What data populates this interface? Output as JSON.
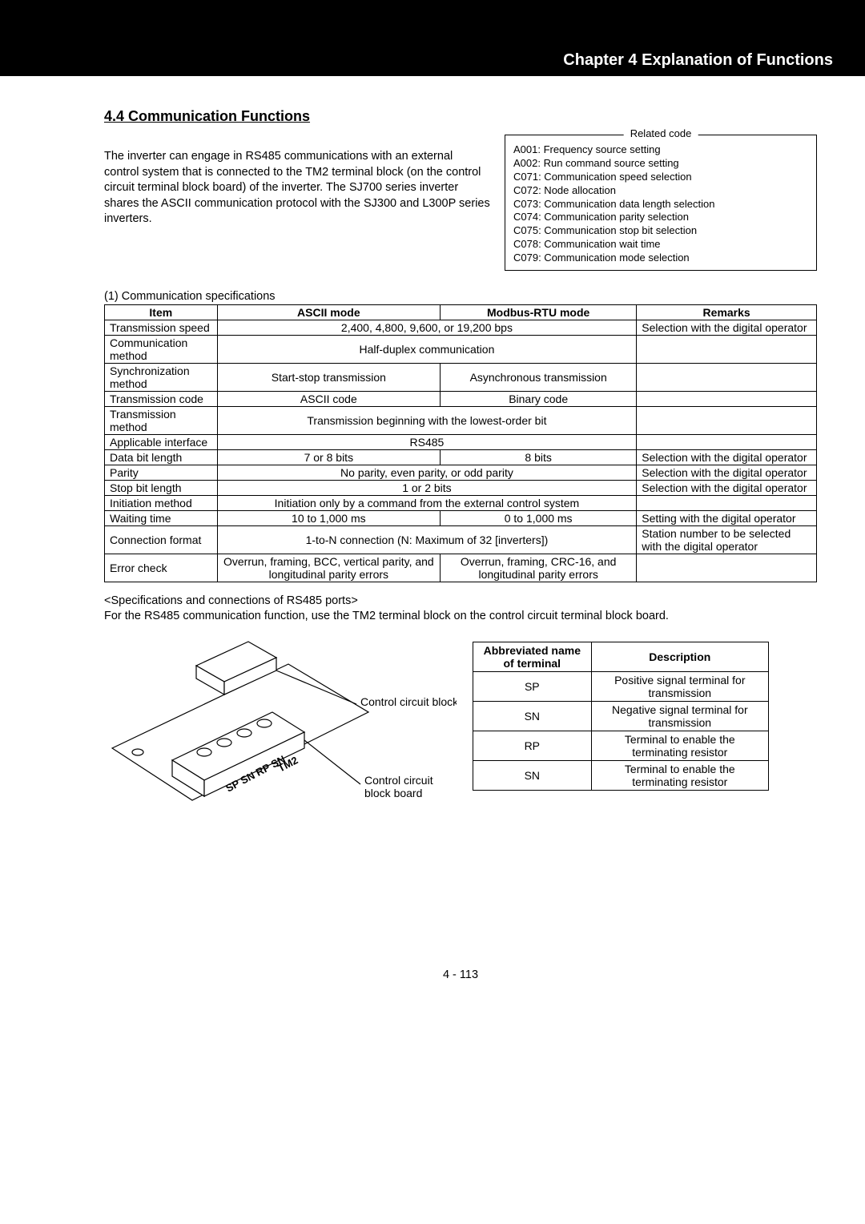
{
  "chapter_title": "Chapter 4 Explanation of Functions",
  "section_title": "4.4 Communication Functions",
  "intro_text": "The inverter can engage in RS485 communications with an external control system that is connected to the TM2 terminal block (on the control circuit terminal block board) of the inverter. The SJ700 series inverter shares the ASCII communication protocol with the SJ300 and L300P series inverters.",
  "related_code": {
    "title": "Related code",
    "items": [
      "A001: Frequency source setting",
      "A002: Run command source setting",
      "C071: Communication speed selection",
      "C072: Node allocation",
      "C073: Communication data length selection",
      "C074: Communication parity selection",
      "C075: Communication stop bit selection",
      "C078: Communication wait time",
      "C079: Communication mode selection"
    ]
  },
  "spec_caption": "(1) Communication specifications",
  "spec_headers": {
    "item": "Item",
    "ascii": "ASCII mode",
    "modbus": "Modbus-RTU mode",
    "remarks": "Remarks"
  },
  "spec_rows": [
    {
      "item": "Transmission speed",
      "span": "2,400, 4,800, 9,600, or 19,200 bps",
      "remarks": "Selection with the digital operator"
    },
    {
      "item": "Communication method",
      "span": "Half-duplex communication",
      "remarks": ""
    },
    {
      "item": "Synchronization method",
      "ascii": "Start-stop transmission",
      "modbus": "Asynchronous transmission",
      "remarks": ""
    },
    {
      "item": "Transmission code",
      "ascii": "ASCII code",
      "modbus": "Binary code",
      "remarks": ""
    },
    {
      "item": "Transmission method",
      "span": "Transmission beginning with the lowest-order bit",
      "remarks": ""
    },
    {
      "item": "Applicable interface",
      "span": "RS485",
      "remarks": ""
    },
    {
      "item": "Data bit length",
      "ascii": "7 or 8 bits",
      "modbus": "8 bits",
      "remarks": "Selection with the digital operator"
    },
    {
      "item": "Parity",
      "span": "No parity, even parity, or odd parity",
      "remarks": "Selection with the digital operator"
    },
    {
      "item": "Stop bit length",
      "span": "1 or 2 bits",
      "remarks": "Selection with the digital operator"
    },
    {
      "item": "Initiation method",
      "span": "Initiation only by a command from the external control system",
      "remarks": ""
    },
    {
      "item": "Waiting time",
      "ascii": "10 to 1,000 ms",
      "modbus": "0 to 1,000 ms",
      "remarks": "Setting with the digital operator"
    },
    {
      "item": "Connection format",
      "span": "1-to-N connection (N: Maximum of 32 [inverters])",
      "remarks": "Station number to be selected with the digital operator"
    },
    {
      "item": "Error check",
      "ascii": "Overrun, framing, BCC, vertical parity, and longitudinal parity errors",
      "modbus": "Overrun, framing, CRC-16, and longitudinal parity errors",
      "remarks": ""
    }
  ],
  "below_heading": "<Specifications and connections of RS485 ports>",
  "below_text": "For the RS485 communication function, use the TM2 terminal block on the control circuit terminal block board.",
  "diagram_labels": {
    "block": "Control circuit block",
    "board": "Control circuit block board",
    "terminals": "SP SN RP SN TM2"
  },
  "term_headers": {
    "abbr": "Abbreviated name of terminal",
    "desc": "Description"
  },
  "term_rows": [
    {
      "abbr": "SP",
      "desc": "Positive signal terminal for transmission"
    },
    {
      "abbr": "SN",
      "desc": "Negative signal terminal for transmission"
    },
    {
      "abbr": "RP",
      "desc": "Terminal to enable the terminating resistor"
    },
    {
      "abbr": "SN",
      "desc": "Terminal to enable the terminating resistor"
    }
  ],
  "page_number": "4 - 113"
}
